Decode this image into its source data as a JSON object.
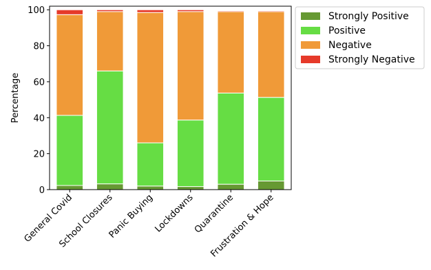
{
  "chart_data": {
    "type": "bar",
    "stacked": true,
    "categories": [
      "General Covid",
      "School Closures",
      "Panic Buying",
      "Lockdowns",
      "Quarantine",
      "Frustration & Hope"
    ],
    "series": [
      {
        "name": "Strongly Positive",
        "color": "#669933",
        "values": [
          2.3,
          3.2,
          2.0,
          1.7,
          3.0,
          4.8
        ]
      },
      {
        "name": "Positive",
        "color": "#66dd44",
        "values": [
          39.0,
          62.8,
          24.0,
          37.0,
          50.7,
          46.5
        ]
      },
      {
        "name": "Negative",
        "color": "#f09a38",
        "values": [
          56.0,
          33.0,
          72.5,
          60.3,
          45.3,
          47.7
        ]
      },
      {
        "name": "Strongly Negative",
        "color": "#e63a2a",
        "values": [
          2.7,
          1.0,
          1.5,
          1.0,
          0.5,
          0.5
        ]
      }
    ],
    "xlabel": "",
    "ylabel": "Percentage",
    "ylim": [
      0,
      102
    ],
    "yticks": [
      0,
      20,
      40,
      60,
      80,
      100
    ],
    "grid": false,
    "legend_position": "upper-right-outside"
  }
}
